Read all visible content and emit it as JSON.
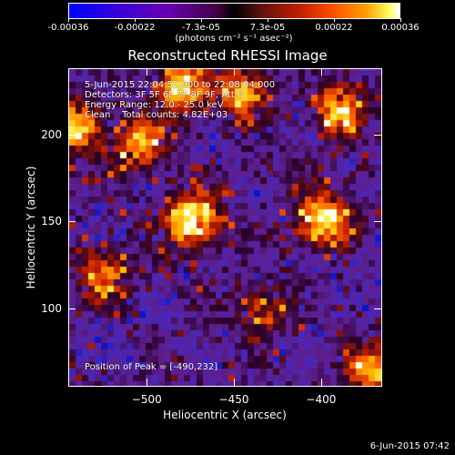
{
  "colorbar": {
    "tick_labels": [
      "-0.00036",
      "-0.00022",
      "-7.3e-05",
      "7.3e-05",
      "0.00022",
      "0.00036"
    ],
    "units": "(photons cm⁻² s⁻¹ asec⁻²)"
  },
  "chart_data": {
    "type": "heatmap",
    "title": "Reconstructed RHESSI Image",
    "xlabel": "Heliocentric X (arcsec)",
    "ylabel": "Heliocentric Y (arcsec)",
    "xlim": [
      -545,
      -365
    ],
    "ylim": [
      55,
      238
    ],
    "x_ticks": [
      -500,
      -450,
      -400
    ],
    "y_ticks": [
      100,
      150,
      200
    ],
    "color_range": [
      -0.00036,
      0.00036
    ],
    "colormap": "blue-purple-black-red-yellow-white",
    "peak": [
      -490,
      232
    ],
    "bright_sources": [
      {
        "x": -473,
        "y": 151,
        "level": 1.0
      },
      {
        "x": -398,
        "y": 151,
        "level": 0.95
      },
      {
        "x": -505,
        "y": 195,
        "level": 0.75
      },
      {
        "x": -540,
        "y": 205,
        "level": 0.8
      },
      {
        "x": -480,
        "y": 228,
        "level": 0.85
      },
      {
        "x": -445,
        "y": 225,
        "level": 0.7
      },
      {
        "x": -390,
        "y": 215,
        "level": 0.75
      },
      {
        "x": -525,
        "y": 120,
        "level": 0.6
      },
      {
        "x": -370,
        "y": 65,
        "level": 0.7
      },
      {
        "x": -435,
        "y": 100,
        "level": 0.5
      }
    ]
  },
  "info": {
    "time_range": "5-Jun-2015 22:04:52.000 to 22:08:04.000",
    "detectors": "Detectors: 3F 5F 6F 7F 8F 9F, Att 0",
    "energy": "Energy Range: 12.0 - 25.0 keV",
    "clean": "Clean    Total counts: 4.82E+03",
    "peak_text": "Position of Peak = [-490,232]"
  },
  "timestamp": "6-Jun-2015 07:42"
}
